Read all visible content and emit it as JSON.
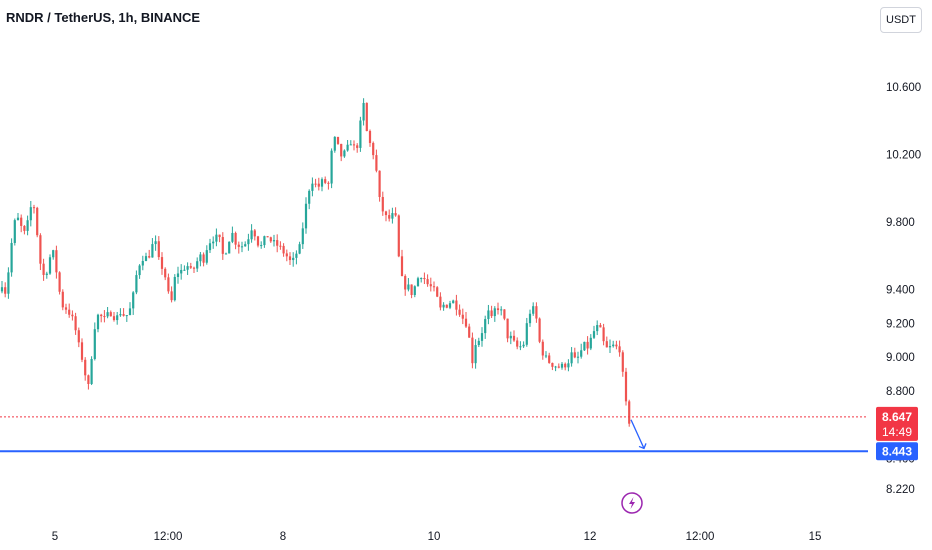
{
  "header": {
    "symbol_title": "RNDR / TetherUS, 1h, BINANCE",
    "currency_button": "USDT"
  },
  "chart_data": {
    "type": "candlestick",
    "title": "RNDR / TetherUS, 1h, BINANCE",
    "ylim": [
      8.15,
      10.85
    ],
    "y_ticks": [
      "10.600",
      "10.200",
      "9.800",
      "9.400",
      "9.200",
      "9.000",
      "8.800",
      "8.400",
      "8.220"
    ],
    "y_tick_values": [
      10.6,
      10.2,
      9.8,
      9.4,
      9.2,
      9.0,
      8.8,
      8.4,
      8.22
    ],
    "x_ticks": [
      "5",
      "12:00",
      "8",
      "10",
      "12",
      "12:00",
      "15"
    ],
    "colors": {
      "up": "#26a69a",
      "down": "#ef5350",
      "horizontal_line": "#2962ff",
      "arrow": "#2962ff"
    },
    "current_price": {
      "value": "8.647",
      "countdown": "14:49",
      "color": "#f23645"
    },
    "horizontal_line": {
      "value": "8.443",
      "color": "#2962ff"
    },
    "price_path": [
      [
        0,
        9.39
      ],
      [
        4,
        9.44
      ],
      [
        8,
        9.38
      ],
      [
        12,
        9.58
      ],
      [
        16,
        9.79
      ],
      [
        20,
        9.82
      ],
      [
        24,
        9.76
      ],
      [
        28,
        9.72
      ],
      [
        32,
        9.88
      ],
      [
        36,
        9.9
      ],
      [
        40,
        9.7
      ],
      [
        44,
        9.48
      ],
      [
        48,
        9.49
      ],
      [
        52,
        9.59
      ],
      [
        56,
        9.62
      ],
      [
        60,
        9.45
      ],
      [
        64,
        9.31
      ],
      [
        70,
        9.28
      ],
      [
        76,
        9.21
      ],
      [
        82,
        9.04
      ],
      [
        86,
        8.96
      ],
      [
        90,
        8.79
      ],
      [
        94,
        9.02
      ],
      [
        98,
        9.24
      ],
      [
        102,
        9.25
      ],
      [
        106,
        9.22
      ],
      [
        110,
        9.25
      ],
      [
        114,
        9.27
      ],
      [
        118,
        9.22
      ],
      [
        122,
        9.27
      ],
      [
        126,
        9.25
      ],
      [
        130,
        9.25
      ],
      [
        134,
        9.31
      ],
      [
        138,
        9.47
      ],
      [
        142,
        9.56
      ],
      [
        146,
        9.6
      ],
      [
        150,
        9.58
      ],
      [
        154,
        9.66
      ],
      [
        158,
        9.67
      ],
      [
        162,
        9.54
      ],
      [
        166,
        9.53
      ],
      [
        170,
        9.38
      ],
      [
        174,
        9.33
      ],
      [
        178,
        9.51
      ],
      [
        182,
        9.5
      ],
      [
        186,
        9.53
      ],
      [
        190,
        9.54
      ],
      [
        194,
        9.5
      ],
      [
        198,
        9.55
      ],
      [
        202,
        9.6
      ],
      [
        206,
        9.58
      ],
      [
        210,
        9.67
      ],
      [
        214,
        9.7
      ],
      [
        218,
        9.71
      ],
      [
        222,
        9.69
      ],
      [
        226,
        9.58
      ],
      [
        230,
        9.68
      ],
      [
        234,
        9.74
      ],
      [
        238,
        9.68
      ],
      [
        242,
        9.66
      ],
      [
        246,
        9.66
      ],
      [
        250,
        9.7
      ],
      [
        254,
        9.77
      ],
      [
        258,
        9.72
      ],
      [
        262,
        9.64
      ],
      [
        266,
        9.69
      ],
      [
        270,
        9.72
      ],
      [
        274,
        9.68
      ],
      [
        278,
        9.67
      ],
      [
        282,
        9.65
      ],
      [
        286,
        9.62
      ],
      [
        290,
        9.59
      ],
      [
        294,
        9.55
      ],
      [
        298,
        9.61
      ],
      [
        302,
        9.65
      ],
      [
        306,
        9.81
      ],
      [
        310,
        9.97
      ],
      [
        314,
        10.05
      ],
      [
        318,
        10.02
      ],
      [
        322,
        10.01
      ],
      [
        326,
        10.06
      ],
      [
        330,
        9.99
      ],
      [
        334,
        10.22
      ],
      [
        338,
        10.31
      ],
      [
        342,
        10.19
      ],
      [
        346,
        10.2
      ],
      [
        350,
        10.24
      ],
      [
        354,
        10.29
      ],
      [
        358,
        10.2
      ],
      [
        362,
        10.36
      ],
      [
        366,
        10.5
      ],
      [
        370,
        10.28
      ],
      [
        374,
        10.25
      ],
      [
        378,
        10.13
      ],
      [
        382,
        9.92
      ],
      [
        386,
        9.85
      ],
      [
        390,
        9.81
      ],
      [
        394,
        9.84
      ],
      [
        398,
        9.82
      ],
      [
        402,
        9.51
      ],
      [
        406,
        9.42
      ],
      [
        410,
        9.42
      ],
      [
        414,
        9.38
      ],
      [
        418,
        9.43
      ],
      [
        422,
        9.5
      ],
      [
        426,
        9.47
      ],
      [
        430,
        9.43
      ],
      [
        434,
        9.41
      ],
      [
        438,
        9.38
      ],
      [
        442,
        9.28
      ],
      [
        446,
        9.31
      ],
      [
        450,
        9.31
      ],
      [
        454,
        9.34
      ],
      [
        458,
        9.31
      ],
      [
        462,
        9.27
      ],
      [
        466,
        9.22
      ],
      [
        470,
        9.19
      ],
      [
        474,
        8.96
      ],
      [
        478,
        9.09
      ],
      [
        482,
        9.11
      ],
      [
        486,
        9.19
      ],
      [
        490,
        9.27
      ],
      [
        494,
        9.22
      ],
      [
        498,
        9.3
      ],
      [
        502,
        9.29
      ],
      [
        506,
        9.23
      ],
      [
        510,
        9.12
      ],
      [
        514,
        9.11
      ],
      [
        518,
        9.06
      ],
      [
        522,
        9.06
      ],
      [
        526,
        9.08
      ],
      [
        530,
        9.23
      ],
      [
        534,
        9.3
      ],
      [
        538,
        9.25
      ],
      [
        542,
        9.08
      ],
      [
        546,
        9.01
      ],
      [
        550,
        8.98
      ],
      [
        554,
        8.96
      ],
      [
        558,
        8.95
      ],
      [
        562,
        8.94
      ],
      [
        566,
        8.95
      ],
      [
        570,
        8.97
      ],
      [
        574,
        9.02
      ],
      [
        578,
        8.97
      ],
      [
        582,
        9.02
      ],
      [
        586,
        9.07
      ],
      [
        590,
        9.06
      ],
      [
        594,
        9.12
      ],
      [
        598,
        9.18
      ],
      [
        602,
        9.17
      ],
      [
        606,
        9.08
      ],
      [
        610,
        9.04
      ],
      [
        614,
        9.07
      ],
      [
        618,
        9.06
      ],
      [
        622,
        9.05
      ],
      [
        626,
        8.84
      ],
      [
        630,
        8.62
      ]
    ],
    "legend": "none",
    "grid": "off"
  }
}
